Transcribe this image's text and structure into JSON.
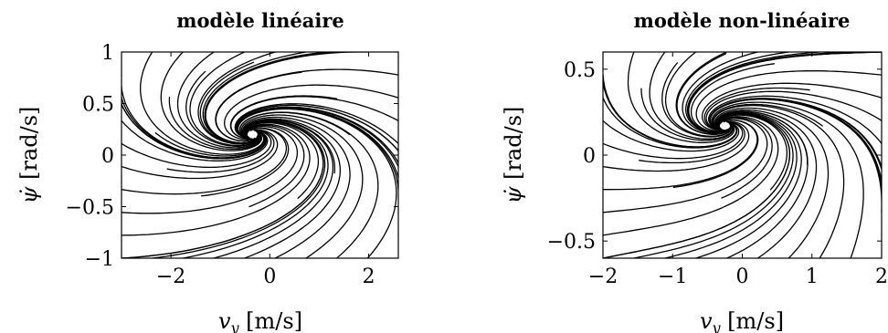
{
  "chart_data": [
    {
      "type": "line",
      "title": "modèle linéaire",
      "xlabel": "v_y [m/s]",
      "ylabel": "ψ̇ [rad/s]",
      "xlim": [
        -3,
        2.6
      ],
      "ylim": [
        -1,
        1
      ],
      "xticks": [
        -2,
        0,
        2
      ],
      "yticks": [
        -1,
        -0.5,
        0,
        0.5,
        1
      ],
      "xtick_labels": [
        "−2",
        "0",
        "2"
      ],
      "ytick_labels": [
        "−1",
        "−0.5",
        "0",
        "0.5",
        "1"
      ],
      "equilibrium": [
        -0.35,
        0.2
      ],
      "grid": false
    },
    {
      "type": "line",
      "title": "modèle non-linéaire",
      "xlabel": "v_y [m/s]",
      "ylabel": "ψ̇ [rad/s]",
      "xlim": [
        -2,
        2
      ],
      "ylim": [
        -0.6,
        0.6
      ],
      "xticks": [
        -2,
        -1,
        0,
        1,
        2
      ],
      "yticks": [
        -0.5,
        0,
        0.5
      ],
      "xtick_labels": [
        "−2",
        "−1",
        "0",
        "1",
        "2"
      ],
      "ytick_labels": [
        "−0.5",
        "0",
        "0.5"
      ],
      "equilibrium": [
        -0.25,
        0.17
      ],
      "grid": false
    }
  ]
}
